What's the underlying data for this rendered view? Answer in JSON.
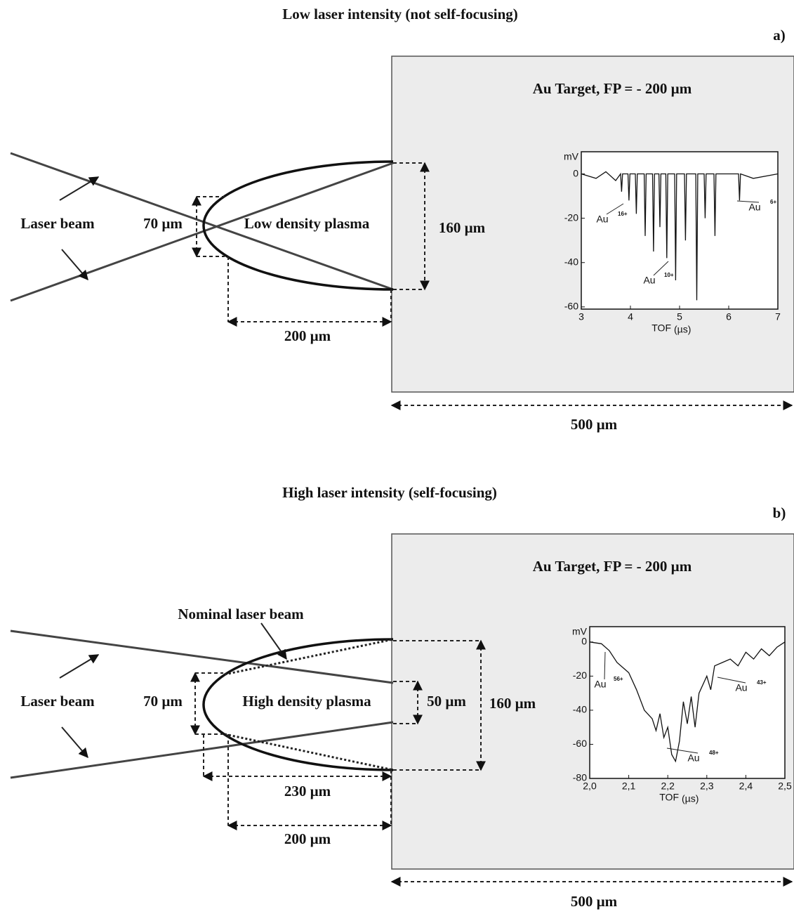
{
  "panels": [
    {
      "title": "Low laser intensity (not self-focusing)",
      "letter": "a)",
      "target_label": "Au Target, FP = - 200 µm",
      "beam_label": "Laser beam",
      "inner_diameter": "70 µm",
      "plasma_label": "Low density plasma",
      "outer_diameter": "160 µm",
      "length": "200 µm",
      "target_width": "500 µm",
      "inset": {
        "y_unit": "mV",
        "x_label": "TOF",
        "x_unit": "(µs)",
        "xlim": [
          3,
          7
        ],
        "ylim": [
          -61,
          10
        ],
        "xticks": [
          3,
          4,
          5,
          6,
          7
        ],
        "yticks": [
          0,
          -20,
          -40,
          -60
        ],
        "x": [
          3,
          3.3,
          3.5,
          3.7,
          3.8,
          3.82,
          3.84,
          3.95,
          3.97,
          3.99,
          4.1,
          4.12,
          4.14,
          4.28,
          4.3,
          4.32,
          4.45,
          4.47,
          4.49,
          4.58,
          4.6,
          4.62,
          4.72,
          4.74,
          4.76,
          4.9,
          4.92,
          4.94,
          5.1,
          5.12,
          5.14,
          5.33,
          5.35,
          5.37,
          5.5,
          5.52,
          5.54,
          5.7,
          5.72,
          5.74,
          6.2,
          6.22,
          6.24,
          6.5,
          7
        ],
        "values": [
          0,
          -2,
          1,
          -3,
          0,
          -8,
          0,
          0,
          -12,
          0,
          0,
          -18,
          0,
          0,
          -28,
          0,
          0,
          -35,
          0,
          0,
          -24,
          0,
          0,
          -38,
          0,
          0,
          -48,
          0,
          0,
          -30,
          0,
          0,
          -57,
          0,
          0,
          -20,
          0,
          0,
          -28,
          0,
          0,
          -12,
          0,
          -2,
          0
        ],
        "annotations": [
          {
            "text": "Au",
            "sup": "16+"
          },
          {
            "text": "Au",
            "sup": "10+"
          },
          {
            "text": "Au",
            "sup": "6+"
          }
        ]
      }
    },
    {
      "title": "High laser intensity (self-focusing)",
      "letter": "b)",
      "target_label": "Au Target, FP = - 200 µm",
      "beam_label": "Laser beam",
      "nominal_label": "Nominal laser beam",
      "inner_diameter": "70 µm",
      "plasma_label": "High density plasma",
      "focus_diameter": "50 µm",
      "outer_diameter": "160 µm",
      "plasma_length": "230 µm",
      "length": "200 µm",
      "target_width": "500 µm",
      "inset": {
        "y_unit": "mV",
        "x_label": "TOF",
        "x_unit": "(µs)",
        "xlim": [
          2.0,
          2.5
        ],
        "ylim": [
          -80,
          9
        ],
        "xticks": [
          {
            "value": 2.0,
            "label": "2,0"
          },
          {
            "value": 2.1,
            "label": "2,1"
          },
          {
            "value": 2.2,
            "label": "2,2"
          },
          {
            "value": 2.3,
            "label": "2,3"
          },
          {
            "value": 2.4,
            "label": "2,4"
          },
          {
            "value": 2.5,
            "label": "2,5"
          }
        ],
        "yticks": [
          0,
          -20,
          -40,
          -60,
          -80
        ],
        "x": [
          2.0,
          2.03,
          2.05,
          2.07,
          2.1,
          2.12,
          2.14,
          2.16,
          2.17,
          2.18,
          2.19,
          2.2,
          2.21,
          2.22,
          2.23,
          2.24,
          2.25,
          2.26,
          2.27,
          2.28,
          2.3,
          2.31,
          2.32,
          2.34,
          2.36,
          2.38,
          2.4,
          2.42,
          2.44,
          2.46,
          2.48,
          2.5
        ],
        "values": [
          0,
          -1,
          -5,
          -12,
          -18,
          -28,
          -40,
          -45,
          -52,
          -42,
          -56,
          -50,
          -66,
          -70,
          -58,
          -35,
          -48,
          -32,
          -50,
          -30,
          -20,
          -28,
          -14,
          -12,
          -10,
          -14,
          -6,
          -10,
          -4,
          -8,
          -3,
          0
        ],
        "annotations": [
          {
            "text": "Au",
            "sup": "56+"
          },
          {
            "text": "Au",
            "sup": "43+"
          },
          {
            "text": "Au",
            "sup": "48+"
          }
        ]
      }
    }
  ]
}
